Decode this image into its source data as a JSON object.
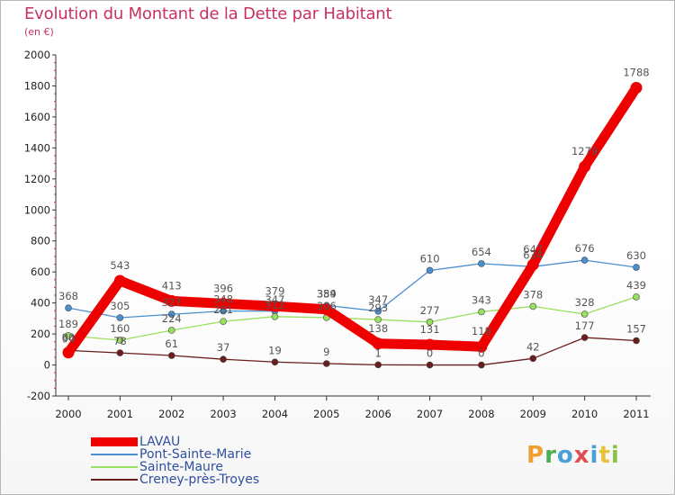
{
  "page": {
    "title": "Evolution du Montant de la Dette par Habitant",
    "unit_label": "(en €)",
    "logo": {
      "letters": [
        "P",
        "r",
        "o",
        "x",
        "i",
        "t",
        "i"
      ],
      "colors": [
        "#f0a030",
        "#4caf50",
        "#4aa0d5",
        "#e05050",
        "#4aa0d5",
        "#e9c23b",
        "#8bc34a"
      ]
    }
  },
  "colors": {
    "title": "#c8325f",
    "axis": "#333333",
    "tick_mark": "#c0392b",
    "grid": "#e8e8e8",
    "legend_text": "#2f4f9f"
  },
  "chart_data": {
    "type": "line",
    "title": "Evolution du Montant de la Dette par Habitant",
    "ylabel": "(en €)",
    "xlabel": "",
    "x": [
      "2000",
      "2001",
      "2002",
      "2003",
      "2004",
      "2005",
      "2006",
      "2007",
      "2008",
      "2009",
      "2010",
      "2011"
    ],
    "ylim": [
      -200,
      2000
    ],
    "yticks": [
      -200,
      0,
      200,
      400,
      600,
      800,
      1000,
      1200,
      1400,
      1600,
      1800,
      2000
    ],
    "grid": false,
    "legend_position": "bottom-left",
    "series": [
      {
        "name": "LAVAU",
        "color": "#ee0000",
        "width": 11,
        "marker": 6.5,
        "values": [
          80,
          543,
          413,
          396,
          379,
          359,
          138,
          131,
          118,
          647,
          1279,
          1788
        ],
        "labels": [
          "80",
          "543",
          "413",
          "396",
          "379",
          "359",
          "138",
          "131",
          "118",
          "647",
          "1279",
          "1788"
        ]
      },
      {
        "name": "Pont-Sainte-Marie",
        "color": "#4a8fd0",
        "width": 1.3,
        "marker": 3.5,
        "values": [
          368,
          305,
          327,
          348,
          347,
          384,
          347,
          610,
          654,
          634,
          676,
          630
        ],
        "labels": [
          "368",
          "305",
          "327",
          "348",
          "347",
          "384",
          "347",
          "610",
          "654",
          "634",
          "676",
          "630"
        ]
      },
      {
        "name": "Sainte-Maure",
        "color": "#99e060",
        "width": 1.3,
        "marker": 3.5,
        "values": [
          189,
          160,
          224,
          281,
          312,
          306,
          293,
          277,
          343,
          378,
          328,
          439
        ],
        "labels": [
          "189",
          "160",
          "224",
          "281",
          "312",
          "306",
          "293",
          "277",
          "343",
          "378",
          "328",
          "439"
        ]
      },
      {
        "name": "Creney-près-Troyes",
        "color": "#6b1d1d",
        "width": 1.3,
        "marker": 3.5,
        "values": [
          94,
          78,
          61,
          37,
          19,
          9,
          1,
          0,
          0,
          42,
          177,
          157
        ],
        "labels": [
          "94",
          "78",
          "61",
          "37",
          "19",
          "9",
          "1",
          "0",
          "0",
          "42",
          "177",
          "157"
        ]
      }
    ]
  }
}
